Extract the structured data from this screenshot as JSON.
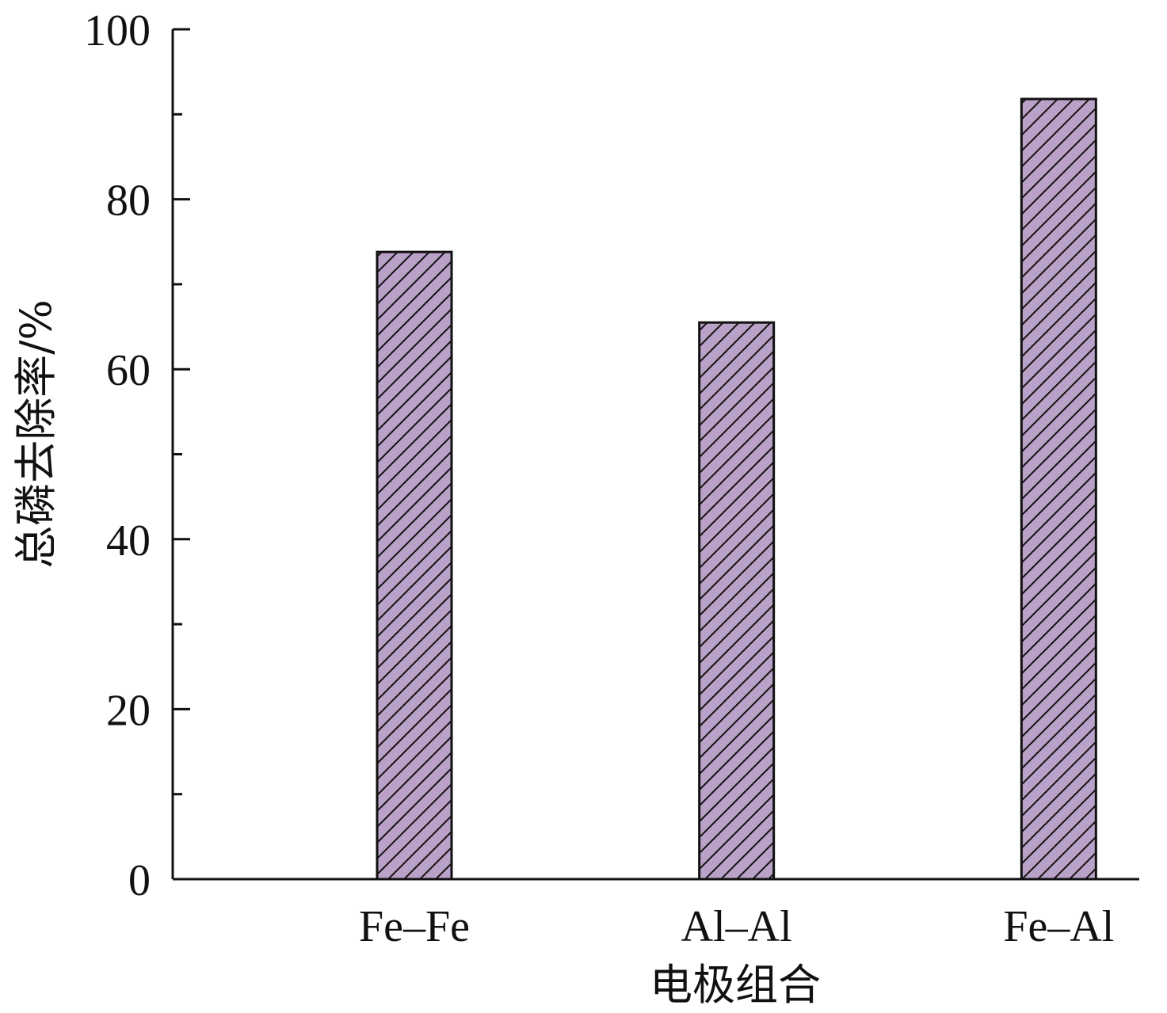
{
  "chart_data": {
    "type": "bar",
    "categories": [
      "Fe–Fe",
      "Al–Al",
      "Fe–Al"
    ],
    "values": [
      73.8,
      65.5,
      91.8
    ],
    "xlabel": "电极组合",
    "ylabel": "总磷去除率/%",
    "ylim": [
      0,
      100
    ],
    "yticks": [
      0,
      20,
      40,
      60,
      80,
      100
    ],
    "y_minor_step": 10,
    "grid": false,
    "bar_fill": "#b9a1c7",
    "bar_hatch": "diagonal",
    "bar_stroke": "#111111"
  }
}
